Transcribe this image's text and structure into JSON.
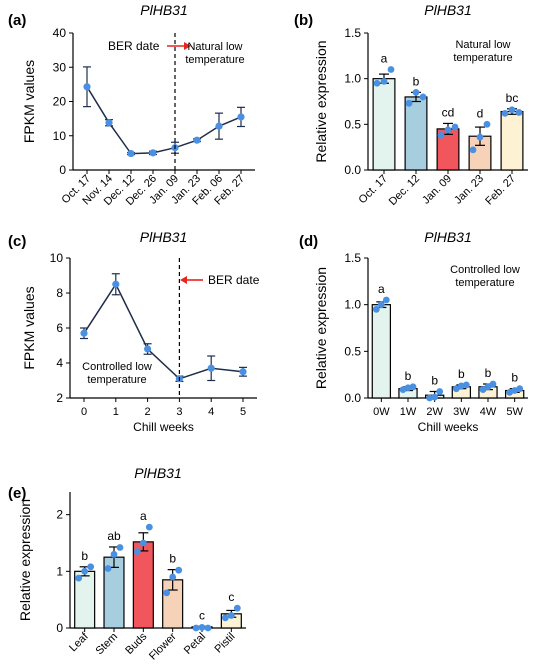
{
  "chart_data": [
    {
      "panel": "(a)",
      "type": "line",
      "title": "PlHB31",
      "ylabel": "FPKM values",
      "xlabel": "",
      "categories": [
        "Oct. 17",
        "Nov. 14",
        "Dec. 12",
        "Dec. 26",
        "Jan. 09",
        "Jan. 23",
        "Feb. 06",
        "Feb. 27"
      ],
      "values": [
        24.3,
        13.8,
        4.8,
        5.0,
        6.5,
        8.7,
        12.8,
        15.5
      ],
      "errors": [
        5.8,
        0.9,
        0.3,
        0.5,
        1.6,
        0.4,
        3.8,
        2.8
      ],
      "ylim": [
        0,
        40
      ],
      "yticks": [
        0,
        10,
        20,
        30,
        40
      ],
      "grid": false,
      "dashed_line_at": "Jan. 09",
      "annotations": [
        "BER date",
        "Natural low\ntemperature"
      ]
    },
    {
      "panel": "(b)",
      "type": "bar",
      "title": "PlHB31",
      "ylabel": "Relative expression",
      "xlabel": "",
      "categories": [
        "Oct. 17",
        "Dec. 12",
        "Jan. 09",
        "Jan. 23",
        "Feb. 27"
      ],
      "values": [
        1.0,
        0.8,
        0.45,
        0.37,
        0.64
      ],
      "errors": [
        0.05,
        0.05,
        0.06,
        0.1,
        0.03
      ],
      "points": [
        [
          0.95,
          0.97,
          1.1
        ],
        [
          0.73,
          0.85,
          0.8
        ],
        [
          0.38,
          0.44,
          0.47
        ],
        [
          0.22,
          0.36,
          0.5
        ],
        [
          0.62,
          0.66,
          0.63
        ]
      ],
      "letters": [
        "a",
        "b",
        "cd",
        "d",
        "bc"
      ],
      "bar_colors": [
        "#e3f3ee",
        "#a6cede",
        "#f0565c",
        "#f6d2b8",
        "#fdf2d4"
      ],
      "ylim": [
        0,
        1.5
      ],
      "yticks": [
        "0.0",
        "0.5",
        "1.0",
        "1.5"
      ],
      "grid": false,
      "annotations": [
        "Natural low\ntemperature"
      ]
    },
    {
      "panel": "(c)",
      "type": "line",
      "title": "PlHB31",
      "ylabel": "FPKM values",
      "xlabel": "Chill weeks",
      "categories": [
        "0",
        "1",
        "2",
        "3",
        "4",
        "5"
      ],
      "values": [
        5.7,
        8.5,
        4.8,
        3.1,
        3.7,
        3.5
      ],
      "errors": [
        0.3,
        0.6,
        0.3,
        0.15,
        0.7,
        0.25
      ],
      "ylim": [
        2,
        10
      ],
      "yticks": [
        2,
        4,
        6,
        8,
        10
      ],
      "grid": false,
      "dashed_line_at": "3",
      "annotations": [
        "BER date",
        "Controlled low\ntemperature"
      ]
    },
    {
      "panel": "(d)",
      "type": "bar",
      "title": "PlHB31",
      "ylabel": "Relative expression",
      "xlabel": "Chill weeks",
      "categories": [
        "0W",
        "1W",
        "2W",
        "3W",
        "4W",
        "5W"
      ],
      "values": [
        1.0,
        0.1,
        0.03,
        0.12,
        0.12,
        0.08
      ],
      "errors": [
        0.03,
        0.02,
        0.04,
        0.02,
        0.03,
        0.02
      ],
      "points": [
        [
          0.95,
          1.0,
          1.05
        ],
        [
          0.09,
          0.11,
          0.12
        ],
        [
          0.0,
          0.01,
          0.07
        ],
        [
          0.1,
          0.13,
          0.14
        ],
        [
          0.09,
          0.12,
          0.15
        ],
        [
          0.06,
          0.08,
          0.1
        ]
      ],
      "letters": [
        "a",
        "b",
        "b",
        "b",
        "b",
        "b"
      ],
      "bar_colors": [
        "#e3f3ee",
        "#e3f3ee",
        "#e3f3ee",
        "#fdf2d4",
        "#fdf2d4",
        "#fdf2d4"
      ],
      "ylim": [
        0,
        1.5
      ],
      "yticks": [
        "0.0",
        "0.5",
        "1.0",
        "1.5"
      ],
      "grid": false,
      "annotations": [
        "Controlled low\ntemperature"
      ]
    },
    {
      "panel": "(e)",
      "type": "bar",
      "title": "PlHB31",
      "ylabel": "Relative expression",
      "xlabel": "",
      "categories": [
        "Leaf",
        "Stem",
        "Buds",
        "Flower",
        "Petal",
        "Pistil"
      ],
      "values": [
        1.0,
        1.25,
        1.52,
        0.85,
        0.02,
        0.25
      ],
      "errors": [
        0.08,
        0.18,
        0.16,
        0.18,
        0.01,
        0.06
      ],
      "points": [
        [
          0.88,
          1.0,
          1.08
        ],
        [
          1.05,
          1.3,
          1.42
        ],
        [
          1.35,
          1.5,
          1.78
        ],
        [
          0.62,
          0.9,
          1.02
        ],
        [
          0.0,
          0.01,
          0.0
        ],
        [
          0.18,
          0.22,
          0.35
        ]
      ],
      "letters": [
        "b",
        "ab",
        "a",
        "b",
        "c",
        "c"
      ],
      "bar_colors": [
        "#e3f3ee",
        "#a6cede",
        "#f0565c",
        "#f6d2b8",
        "#ffffff",
        "#fdf2d4"
      ],
      "ylim": [
        0,
        2.4
      ],
      "yticks": [
        0,
        1,
        2
      ],
      "grid": false
    }
  ]
}
